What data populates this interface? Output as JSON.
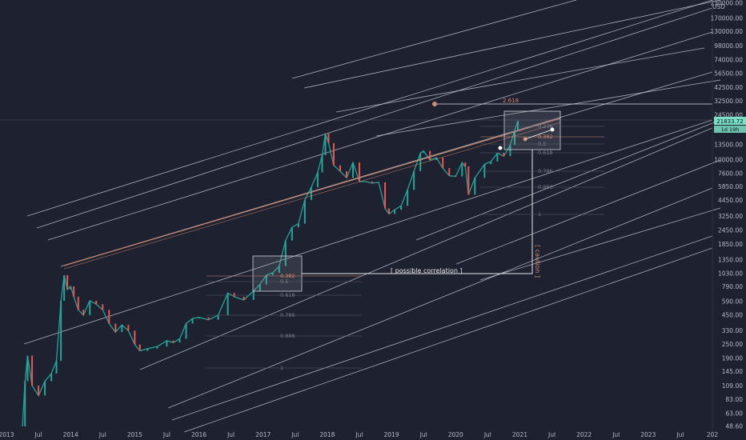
{
  "chart_data": {
    "type": "line",
    "title": "",
    "currency": "USD",
    "scale": "log",
    "ylim": [
      48.6,
      230000
    ],
    "xlim": [
      2013.0,
      2024.0
    ],
    "y_ticks": [
      "230000.00",
      "170000.00",
      "130000.00",
      "98000.00",
      "74000.00",
      "56500.00",
      "42500.00",
      "32500.00",
      "24500.00",
      "13500.00",
      "10000.00",
      "7600.00",
      "5850.00",
      "4450.00",
      "3250.00",
      "2450.00",
      "1850.00",
      "1350.00",
      "1030.00",
      "790.00",
      "590.00",
      "450.00",
      "330.00",
      "250.00",
      "190.00",
      "145.00",
      "109.00",
      "83.00",
      "63.00",
      "48.60"
    ],
    "y_tick_values": [
      230000,
      170000,
      130000,
      98000,
      74000,
      56500,
      42500,
      32500,
      24500,
      13500,
      10000,
      7600,
      5850,
      4450,
      3250,
      2450,
      1850,
      1350,
      1030,
      790,
      590,
      450,
      330,
      250,
      190,
      145,
      109,
      83,
      63,
      48.6
    ],
    "x_ticks": [
      {
        "label": "2013",
        "t": 2013.0
      },
      {
        "label": "Jul",
        "t": 2013.5
      },
      {
        "label": "2014",
        "t": 2014.0
      },
      {
        "label": "Jul",
        "t": 2014.5
      },
      {
        "label": "2015",
        "t": 2015.0
      },
      {
        "label": "Jul",
        "t": 2015.5
      },
      {
        "label": "2016",
        "t": 2016.0
      },
      {
        "label": "Jul",
        "t": 2016.5
      },
      {
        "label": "2017",
        "t": 2017.0
      },
      {
        "label": "Jul",
        "t": 2017.5
      },
      {
        "label": "2018",
        "t": 2018.0
      },
      {
        "label": "Jul",
        "t": 2018.5
      },
      {
        "label": "2019",
        "t": 2019.0
      },
      {
        "label": "Jul",
        "t": 2019.5
      },
      {
        "label": "2020",
        "t": 2020.0
      },
      {
        "label": "Jul",
        "t": 2020.5
      },
      {
        "label": "2021",
        "t": 2021.0
      },
      {
        "label": "Jul",
        "t": 2021.5
      },
      {
        "label": "2022",
        "t": 2022.0
      },
      {
        "label": "Jul",
        "t": 2022.5
      },
      {
        "label": "2023",
        "t": 2023.0
      },
      {
        "label": "Jul",
        "t": 2023.5
      },
      {
        "label": "202",
        "t": 2024.0
      }
    ],
    "price_label": "21833.72",
    "countdown_label": "1d 19h",
    "series": [
      {
        "values_t": [
          2013.25,
          2013.29,
          2013.33,
          2013.4,
          2013.5,
          2013.6,
          2013.7,
          2013.78,
          2013.85,
          2013.9,
          2013.95,
          2014.0,
          2014.05,
          2014.12,
          2014.2,
          2014.3,
          2014.4,
          2014.5,
          2014.6,
          2014.7,
          2014.8,
          2014.9,
          2015.0,
          2015.08,
          2015.2,
          2015.35,
          2015.5,
          2015.6,
          2015.7,
          2015.8,
          2015.9,
          2016.0,
          2016.15,
          2016.3,
          2016.45,
          2016.55,
          2016.7,
          2016.85,
          2016.95,
          2017.05,
          2017.15,
          2017.25,
          2017.35,
          2017.45,
          2017.55,
          2017.65,
          2017.75,
          2017.85,
          2017.92,
          2017.97,
          2018.02,
          2018.1,
          2018.2,
          2018.3,
          2018.4,
          2018.5,
          2018.6,
          2018.7,
          2018.8,
          2018.9,
          2018.96,
          2019.05,
          2019.15,
          2019.25,
          2019.35,
          2019.45,
          2019.5,
          2019.6,
          2019.7,
          2019.8,
          2019.9,
          2020.0,
          2020.1,
          2020.15,
          2020.2,
          2020.3,
          2020.45,
          2020.55,
          2020.65,
          2020.75,
          2020.85,
          2020.92,
          2020.97
        ],
        "values": [
          48.6,
          120,
          200,
          110,
          90,
          120,
          140,
          180,
          600,
          1000,
          750,
          800,
          650,
          500,
          450,
          600,
          560,
          500,
          380,
          320,
          370,
          330,
          250,
          220,
          230,
          240,
          270,
          260,
          280,
          380,
          420,
          430,
          410,
          450,
          700,
          650,
          610,
          730,
          830,
          1000,
          1050,
          1200,
          2000,
          2600,
          2800,
          4500,
          5800,
          7800,
          11000,
          17000,
          14000,
          9000,
          8000,
          7000,
          9500,
          6500,
          6500,
          6300,
          6400,
          3800,
          3400,
          3700,
          4000,
          5500,
          8000,
          11500,
          12000,
          10000,
          10500,
          8500,
          7300,
          7200,
          9500,
          8800,
          5000,
          7000,
          9200,
          9700,
          11500,
          10800,
          13500,
          18000,
          21833
        ]
      }
    ],
    "fib_levels": [
      {
        "label": "0.382",
        "group": "2017"
      },
      {
        "label": "0.5",
        "group": "2017"
      },
      {
        "label": "0.618",
        "group": "2017"
      },
      {
        "label": "0.786",
        "group": "2017"
      },
      {
        "label": "0.886",
        "group": "2017"
      },
      {
        "label": "1",
        "group": "2017"
      },
      {
        "label": "0.236",
        "group": "2021"
      },
      {
        "label": "0.382",
        "group": "2021"
      },
      {
        "label": "0.5",
        "group": "2021"
      },
      {
        "label": "0.618",
        "group": "2021"
      },
      {
        "label": "0.786",
        "group": "2021"
      },
      {
        "label": "0.886",
        "group": "2021"
      },
      {
        "label": "1",
        "group": "2021"
      }
    ],
    "fib_extension_label": "2.618",
    "annotations": [
      "[ possible correlation ]",
      "[ caution ]"
    ],
    "grid": false
  },
  "colors": {
    "background": "#1e2130",
    "line": "#d9dce3",
    "fib_orange": "#d58a6e",
    "candle_up": "#26a69a",
    "candle_down": "#ef5350",
    "price_badge": "#7ae0c8",
    "countdown_badge": "#7ae0c8"
  }
}
